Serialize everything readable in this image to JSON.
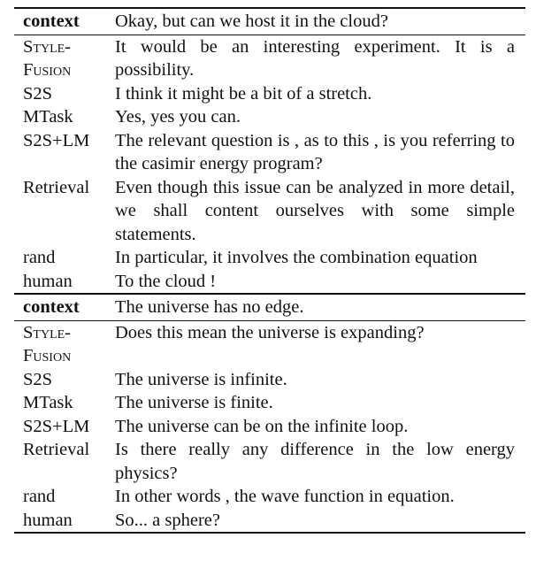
{
  "blocks": [
    {
      "context_label": "context",
      "context_text": "Okay, but can we host it in the cloud?",
      "rows": [
        {
          "label_line1": "Style-",
          "label_line2": "Fusion",
          "text": "It would be an interesting experiment. It is a possibility."
        },
        {
          "label": "S2S",
          "text": "I think it might be a bit of a stretch."
        },
        {
          "label": "MTask",
          "text": "Yes, yes you can."
        },
        {
          "label": "S2S+LM",
          "text": "The relevant question is , as to this , is you referring to the casimir energy program?"
        },
        {
          "label": "Retrieval",
          "text": "Even though this issue can be analyzed in more detail, we shall content ourselves with some simple statements."
        },
        {
          "label": "rand",
          "text": "In particular, it involves the combination equation"
        },
        {
          "label": "human",
          "text": "To the cloud !"
        }
      ]
    },
    {
      "context_label": "context",
      "context_text": "The universe has no edge.",
      "rows": [
        {
          "label_line1": "Style-",
          "label_line2": "Fusion",
          "text": "Does this mean the universe is expanding?"
        },
        {
          "label": "S2S",
          "text": "The universe is infinite."
        },
        {
          "label": "MTask",
          "text": "The universe is finite."
        },
        {
          "label": "S2S+LM",
          "text": "The universe can be on the infinite loop."
        },
        {
          "label": "Retrieval",
          "text": "Is there really any difference in the low energy physics?"
        },
        {
          "label": "rand",
          "text": "In other words , the wave function in equation."
        },
        {
          "label": "human",
          "text": "So... a sphere?"
        }
      ]
    }
  ]
}
